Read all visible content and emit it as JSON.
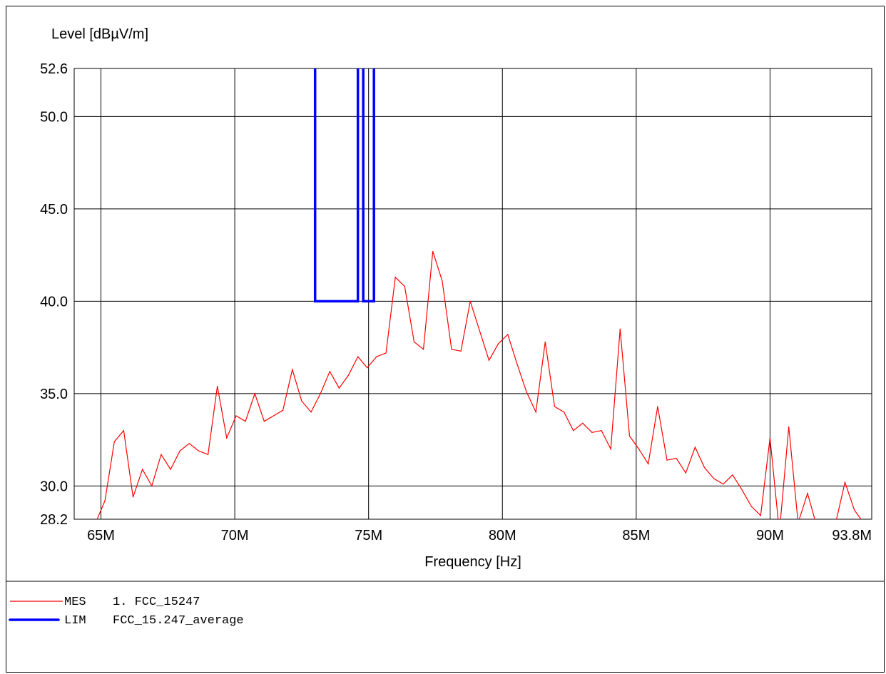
{
  "chart_data": {
    "type": "line",
    "title": "",
    "ylabel": "Level [dBµV/m]",
    "xlabel": "Frequency [Hz]",
    "xlim": [
      64000000,
      93800000
    ],
    "ylim": [
      28.2,
      52.6
    ],
    "x_ticks": [
      {
        "value": 65000000,
        "label": "65M"
      },
      {
        "value": 70000000,
        "label": "70M"
      },
      {
        "value": 75000000,
        "label": "75M"
      },
      {
        "value": 80000000,
        "label": "80M"
      },
      {
        "value": 85000000,
        "label": "85M"
      },
      {
        "value": 90000000,
        "label": "90M"
      },
      {
        "value": 93800000,
        "label": "93.8M"
      }
    ],
    "y_ticks": [
      {
        "value": 28.2,
        "label": "28.2"
      },
      {
        "value": 30.0,
        "label": "30.0"
      },
      {
        "value": 35.0,
        "label": "35.0"
      },
      {
        "value": 40.0,
        "label": "40.0"
      },
      {
        "value": 45.0,
        "label": "45.0"
      },
      {
        "value": 50.0,
        "label": "50.0"
      },
      {
        "value": 52.6,
        "label": "52.6"
      }
    ],
    "grid": true,
    "series": [
      {
        "name": "MES",
        "legend_text": "1. FCC_15247",
        "color": "#ff0000",
        "points": [
          [
            64800000,
            28.0
          ],
          [
            65150000,
            29.2
          ],
          [
            65500000,
            32.4
          ],
          [
            65850000,
            33.0
          ],
          [
            66200000,
            29.4
          ],
          [
            66550000,
            30.9
          ],
          [
            66900000,
            30.0
          ],
          [
            67250000,
            31.7
          ],
          [
            67600000,
            30.9
          ],
          [
            67950000,
            31.9
          ],
          [
            68300000,
            32.3
          ],
          [
            68650000,
            31.9
          ],
          [
            69000000,
            31.7
          ],
          [
            69350000,
            35.4
          ],
          [
            69700000,
            32.6
          ],
          [
            70050000,
            33.8
          ],
          [
            70400000,
            33.5
          ],
          [
            70750000,
            35.0
          ],
          [
            71100000,
            33.5
          ],
          [
            71450000,
            33.8
          ],
          [
            71800000,
            34.1
          ],
          [
            72150000,
            36.3
          ],
          [
            72500000,
            34.6
          ],
          [
            72850000,
            34.0
          ],
          [
            73200000,
            35.0
          ],
          [
            73550000,
            36.2
          ],
          [
            73900000,
            35.3
          ],
          [
            74250000,
            36.0
          ],
          [
            74600000,
            37.0
          ],
          [
            74950000,
            36.4
          ],
          [
            75300000,
            37.0
          ],
          [
            75650000,
            37.2
          ],
          [
            76000000,
            41.3
          ],
          [
            76350000,
            40.8
          ],
          [
            76700000,
            37.8
          ],
          [
            77050000,
            37.4
          ],
          [
            77400000,
            42.7
          ],
          [
            77750000,
            41.1
          ],
          [
            78100000,
            37.4
          ],
          [
            78450000,
            37.3
          ],
          [
            78800000,
            40.0
          ],
          [
            79500000,
            36.8
          ],
          [
            79850000,
            37.7
          ],
          [
            80200000,
            38.2
          ],
          [
            80550000,
            36.6
          ],
          [
            80900000,
            35.1
          ],
          [
            81250000,
            34.0
          ],
          [
            81600000,
            37.8
          ],
          [
            81950000,
            34.3
          ],
          [
            82300000,
            34.0
          ],
          [
            82650000,
            33.0
          ],
          [
            83000000,
            33.4
          ],
          [
            83350000,
            32.9
          ],
          [
            83700000,
            33.0
          ],
          [
            84050000,
            32.0
          ],
          [
            84400000,
            38.5
          ],
          [
            84750000,
            32.7
          ],
          [
            85100000,
            32.0
          ],
          [
            85450000,
            31.2
          ],
          [
            85800000,
            34.3
          ],
          [
            86150000,
            31.4
          ],
          [
            86500000,
            31.5
          ],
          [
            86850000,
            30.7
          ],
          [
            87200000,
            32.1
          ],
          [
            87550000,
            31.0
          ],
          [
            87900000,
            30.4
          ],
          [
            88250000,
            30.1
          ],
          [
            88600000,
            30.6
          ],
          [
            88950000,
            29.8
          ],
          [
            89300000,
            28.9
          ],
          [
            89650000,
            28.4
          ],
          [
            90000000,
            32.6
          ],
          [
            90350000,
            27.5
          ],
          [
            90700000,
            33.2
          ],
          [
            91050000,
            28.0
          ],
          [
            91400000,
            29.6
          ],
          [
            91750000,
            27.8
          ],
          [
            92100000,
            27.6
          ],
          [
            92450000,
            28.0
          ],
          [
            92800000,
            30.2
          ],
          [
            93150000,
            28.7
          ],
          [
            93500000,
            28.0
          ]
        ]
      },
      {
        "name": "LIM",
        "legend_text": "FCC_15.247_average",
        "color": "#0000ff",
        "segments": [
          [
            [
              73000000,
              52.6
            ],
            [
              73000000,
              40.0
            ],
            [
              74600000,
              40.0
            ],
            [
              74600000,
              52.6
            ]
          ],
          [
            [
              74800000,
              52.6
            ],
            [
              74800000,
              40.0
            ],
            [
              75200000,
              40.0
            ],
            [
              75200000,
              52.6
            ]
          ]
        ]
      }
    ]
  }
}
